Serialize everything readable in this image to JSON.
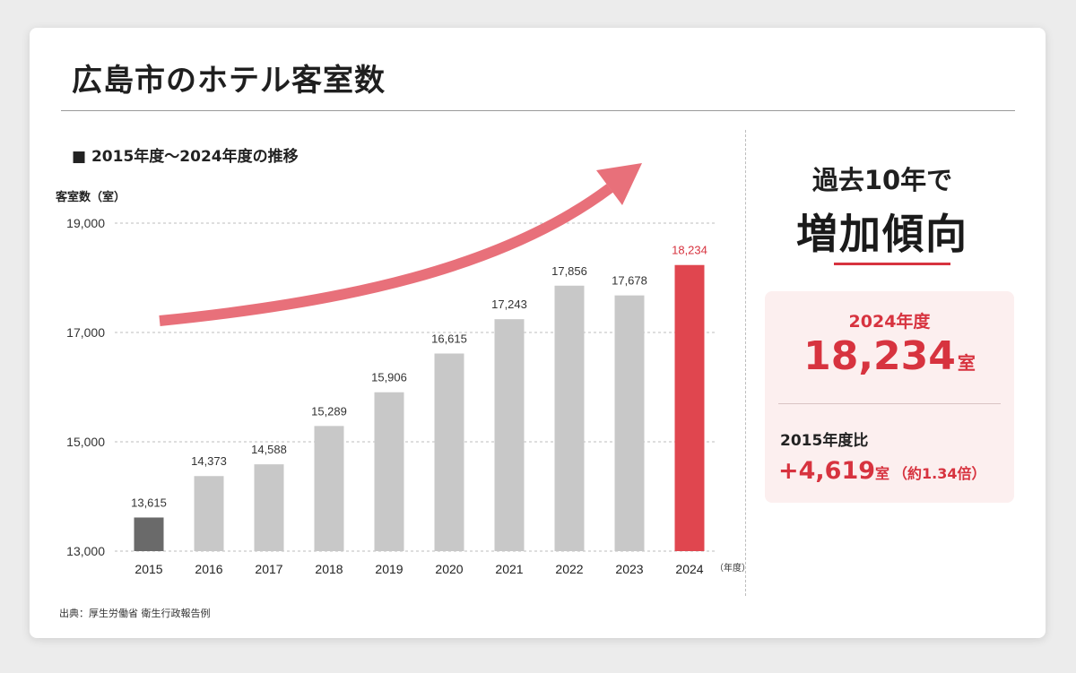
{
  "title": "広島市のホテル客室数",
  "subtitle": "■ 2015年度～2024年度の推移",
  "source": "出典：厚生労働省 衛生行政報告例",
  "highlight": {
    "line1": "過去10年で",
    "line2": "増加傾向",
    "year_label": "2024年度",
    "value": "18,234",
    "unit": "室",
    "compare_label": "2015年度比",
    "diff": "+4,619",
    "diff_unit": "室",
    "ratio": "（約1.34倍）"
  },
  "colors": {
    "accent": "#d7333f",
    "bar_default": "#c8c8c8",
    "bar_first": "#6a6a6a",
    "bar_highlight": "#e0464f",
    "arrow": "#e8707a"
  },
  "chart_data": {
    "type": "bar",
    "ylabel": "客室数（室）",
    "xlabel": "（年度）",
    "ylim": [
      13000,
      19000
    ],
    "yticks": [
      13000,
      15000,
      17000,
      19000
    ],
    "ytick_labels": [
      "13,000",
      "15,000",
      "17,000",
      "19,000"
    ],
    "grid": true,
    "categories": [
      "2015",
      "2016",
      "2017",
      "2018",
      "2019",
      "2020",
      "2021",
      "2022",
      "2023",
      "2024"
    ],
    "values": [
      13615,
      14373,
      14588,
      15289,
      15906,
      16615,
      17243,
      17856,
      17678,
      18234
    ],
    "value_labels": [
      "13,615",
      "14,373",
      "14,588",
      "15,289",
      "15,906",
      "16,615",
      "17,243",
      "17,856",
      "17,678",
      "18,234"
    ],
    "annotation": "upward trend arrow"
  }
}
